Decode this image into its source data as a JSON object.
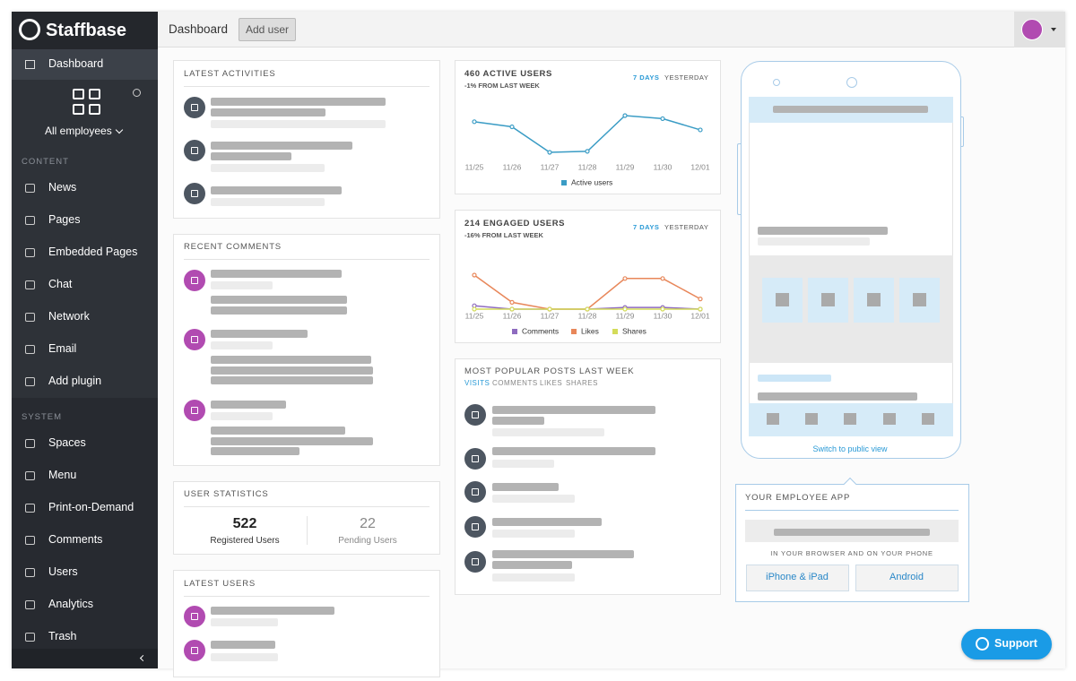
{
  "sidebar": {
    "brand": "Staffbase",
    "top_item": "Dashboard",
    "space": "All employees",
    "content_label": "CONTENT",
    "content_items": [
      "News",
      "Pages",
      "Embedded Pages",
      "Chat",
      "Network",
      "Email",
      "Add plugin"
    ],
    "system_label": "SYSTEM",
    "system_items": [
      "Spaces",
      "Menu",
      "Print-on-Demand",
      "Comments",
      "Users",
      "Analytics",
      "Trash"
    ]
  },
  "topbar": {
    "title": "Dashboard",
    "button": "Add user"
  },
  "panels": {
    "latest_activities": "LATEST ACTIVITIES",
    "recent_comments": "RECENT COMMENTS",
    "user_statistics": {
      "title": "USER STATISTICS",
      "stats": [
        {
          "value": 522,
          "label": "Registered Users"
        },
        {
          "value": 22,
          "label": "Pending Users"
        }
      ]
    },
    "latest_users": "LATEST USERS",
    "popular_posts": {
      "title": "MOST POPULAR POSTS LAST WEEK",
      "tabs": [
        "VISITS",
        "COMMENTS",
        "LIKES",
        "SHARES"
      ]
    }
  },
  "chart_data": [
    {
      "type": "line",
      "title": "460 ACTIVE USERS",
      "subtitle": "-1% FROM LAST WEEK",
      "toggles": [
        "7 DAYS",
        "YESTERDAY"
      ],
      "categories": [
        "11/25",
        "11/26",
        "11/27",
        "11/28",
        "11/29",
        "11/30",
        "12/01"
      ],
      "series": [
        {
          "name": "Active users",
          "color": "#3a9cc5",
          "values": [
            60,
            55,
            30,
            31,
            66,
            63,
            52
          ]
        }
      ]
    },
    {
      "type": "line",
      "title": "214 ENGAGED USERS",
      "subtitle": "-16% FROM LAST WEEK",
      "toggles": [
        "7 DAYS",
        "YESTERDAY"
      ],
      "categories": [
        "11/25",
        "11/26",
        "11/27",
        "11/28",
        "11/29",
        "11/30",
        "12/01"
      ],
      "series": [
        {
          "name": "Comments",
          "color": "#8e6bbf",
          "values": [
            1,
            0,
            0,
            0,
            0.5,
            0.5,
            0
          ]
        },
        {
          "name": "Likes",
          "color": "#e8875a",
          "values": [
            10,
            2,
            0,
            0,
            9,
            9,
            3
          ]
        },
        {
          "name": "Shares",
          "color": "#d4dc5a",
          "values": [
            0,
            0,
            0,
            0,
            0,
            0,
            0
          ]
        }
      ]
    }
  ],
  "app_preview": {
    "link": "Switch to public view",
    "title": "YOUR EMPLOYEE APP",
    "caption": "IN YOUR BROWSER AND ON YOUR PHONE",
    "buttons": [
      "iPhone & iPad",
      "Android"
    ]
  },
  "support": "Support"
}
